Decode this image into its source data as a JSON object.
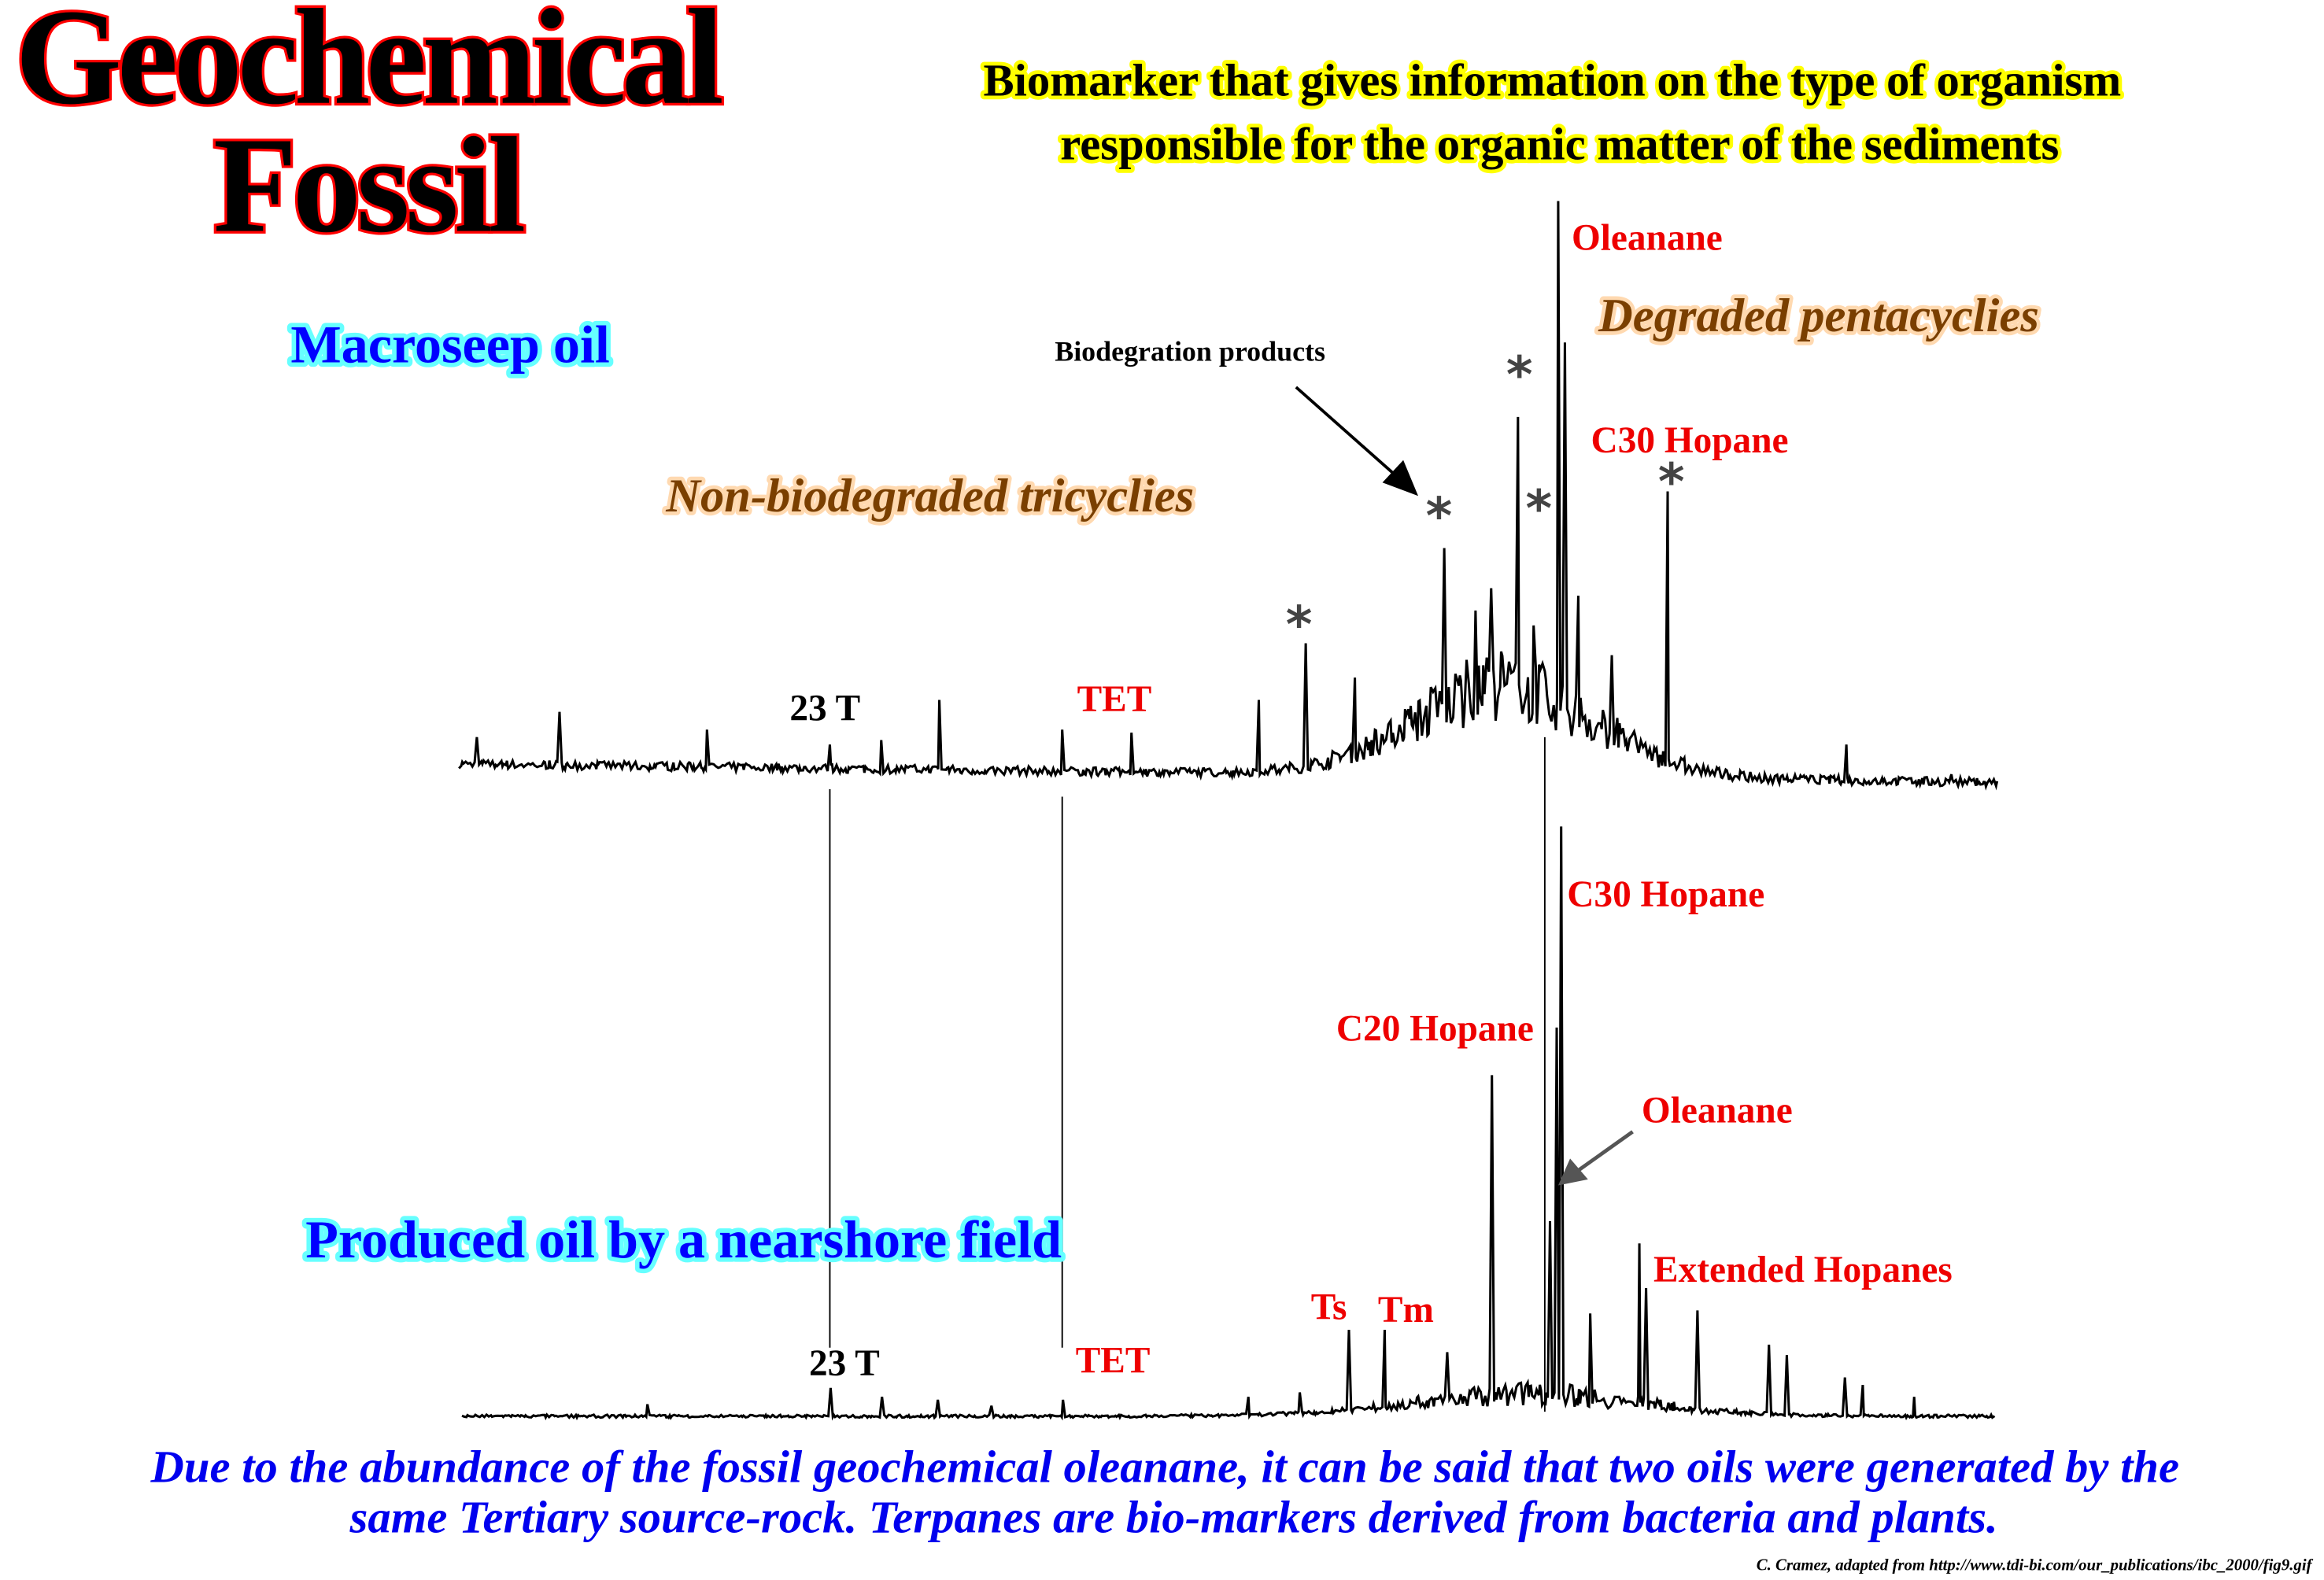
{
  "title": {
    "line1": "Geochemical",
    "line2": "Fossil"
  },
  "headline": {
    "line1": "Biomarker that gives information on the type of organism",
    "line2": "responsible for the organic matter of the sediments"
  },
  "top_panel": {
    "sample_label": "Macroseep oil",
    "non_degraded_label": "Non-biodegraded tricyclies",
    "degraded_label": "Degraded pentacyclies",
    "biodegradation_label": "Biodegration products",
    "oleanane_label": "Oleanane",
    "c30_hopane_label": "C30 Hopane",
    "t23_label": "23 T",
    "tet_label": "TET",
    "asterisk": "*"
  },
  "bottom_panel": {
    "sample_label": "Produced oil by a nearshore field",
    "c30_hopane_label": "C30 Hopane",
    "c20_hopane_label": "C20 Hopane",
    "oleanane_label": "Oleanane",
    "extended_hopanes_label": "Extended Hopanes",
    "ts_label": "Ts",
    "tm_label": "Tm",
    "t23_label": "23 T",
    "tet_label": "TET"
  },
  "caption": {
    "line1": "Due to the abundance of the fossil geochemical oleanane, it can be said that two oils were generated by the",
    "line2": "same Tertiary source-rock. Terpanes are bio-markers derived from bacteria and plants."
  },
  "credit": "C. Cramez, adapted from http://www.tdi-bi.com/our_publications/ibc_2000/fig9.gif",
  "colors": {
    "title_outline": "#ff0000",
    "sample_label": "#0000ff",
    "group_label": "#7a3f00",
    "peak_label": "#ee0000",
    "caption": "#0000ee"
  }
}
